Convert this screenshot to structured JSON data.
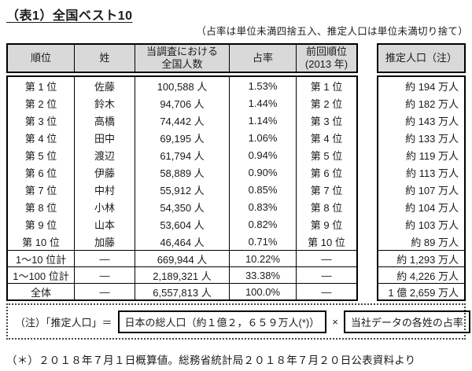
{
  "title": "（表1）全国ベスト10",
  "top_note": "（占率は単位未満四捨五入、推定人口は単位未満切り捨て）",
  "colors": {
    "header_bg": "#d9d9d9",
    "border": "#000000",
    "text": "#1a1a1a"
  },
  "table": {
    "headers": {
      "rank": "順位",
      "surname": "姓",
      "count_line1": "当調査における",
      "count_line2": "全国人数",
      "share": "占率",
      "prev_line1": "前回順位",
      "prev_line2": "(2013 年)",
      "est_pop": "推定人口（注）"
    },
    "rows": [
      {
        "rank": "第 1 位",
        "surname": "佐藤",
        "count": "100,588 人",
        "share": "1.53%",
        "prev": "第 1 位",
        "est": "約 194 万人"
      },
      {
        "rank": "第 2 位",
        "surname": "鈴木",
        "count": "94,706 人",
        "share": "1.44%",
        "prev": "第 2 位",
        "est": "約 182 万人"
      },
      {
        "rank": "第 3 位",
        "surname": "高橋",
        "count": "74,442 人",
        "share": "1.14%",
        "prev": "第 3 位",
        "est": "約 143 万人"
      },
      {
        "rank": "第 4 位",
        "surname": "田中",
        "count": "69,195 人",
        "share": "1.06%",
        "prev": "第 4 位",
        "est": "約 133 万人"
      },
      {
        "rank": "第 5 位",
        "surname": "渡辺",
        "count": "61,794 人",
        "share": "0.94%",
        "prev": "第 5 位",
        "est": "約 119 万人"
      },
      {
        "rank": "第 6 位",
        "surname": "伊藤",
        "count": "58,889 人",
        "share": "0.90%",
        "prev": "第 6 位",
        "est": "約 113 万人"
      },
      {
        "rank": "第 7 位",
        "surname": "中村",
        "count": "55,912 人",
        "share": "0.85%",
        "prev": "第 7 位",
        "est": "約 107 万人"
      },
      {
        "rank": "第 8 位",
        "surname": "小林",
        "count": "54,350 人",
        "share": "0.83%",
        "prev": "第 8 位",
        "est": "約 104 万人"
      },
      {
        "rank": "第 9 位",
        "surname": "山本",
        "count": "53,604 人",
        "share": "0.82%",
        "prev": "第 9 位",
        "est": "約 103 万人"
      },
      {
        "rank": "第 10 位",
        "surname": "加藤",
        "count": "46,464 人",
        "share": "0.71%",
        "prev": "第 10 位",
        "est": "約 89 万人"
      }
    ],
    "summary": [
      {
        "rank": "1～10 位計",
        "surname": "―",
        "count": "669,944 人",
        "share": "10.22%",
        "prev": "―",
        "est": "約 1,293 万人"
      },
      {
        "rank": "1～100 位計",
        "surname": "―",
        "count": "2,189,321 人",
        "share": "33.38%",
        "prev": "―",
        "est": "約 4,226 万人"
      },
      {
        "rank": "全体",
        "surname": "―",
        "count": "6,557,813 人",
        "share": "100.0%",
        "prev": "―",
        "est": "1 億 2,659 万人"
      }
    ]
  },
  "note_box": {
    "prefix": "（注）「推定人口」＝",
    "factor1": "日本の総人口（約１億２，６５９万人(*)）",
    "operator": "×",
    "factor2": "当社データの各姓の占率"
  },
  "footnote": "（＊）２０１８年７月１日概算値。総務省統計局２０１８年７月２０日公表資料より"
}
